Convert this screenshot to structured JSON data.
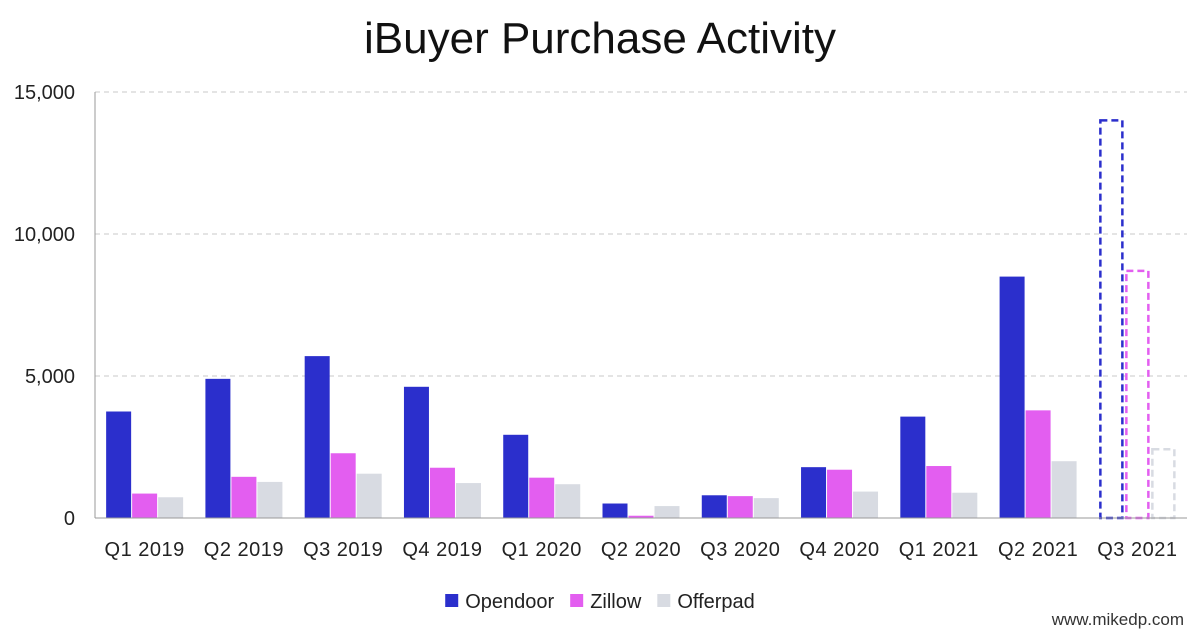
{
  "chart_data": {
    "type": "bar",
    "title": "iBuyer Purchase Activity",
    "xlabel": "",
    "ylabel": "",
    "ylim": [
      0,
      15000
    ],
    "yticks": [
      0,
      5000,
      10000,
      15000
    ],
    "ytick_labels": [
      "0",
      "5,000",
      "10,000",
      "15,000"
    ],
    "grid": true,
    "legend_position": "bottom-center",
    "categories": [
      "Q1 2019",
      "Q2 2019",
      "Q3 2019",
      "Q4 2019",
      "Q1 2020",
      "Q2 2020",
      "Q3 2020",
      "Q4 2020",
      "Q1 2021",
      "Q2 2021",
      "Q3 2021"
    ],
    "estimated_categories": [
      "Q3 2021"
    ],
    "series": [
      {
        "name": "Opendoor",
        "color": "#2b2fcc",
        "values": [
          3750,
          4900,
          5700,
          4620,
          2930,
          510,
          800,
          1790,
          3570,
          8500,
          14000
        ]
      },
      {
        "name": "Zillow",
        "color": "#e35ef0",
        "values": [
          860,
          1450,
          2280,
          1770,
          1420,
          80,
          770,
          1700,
          1830,
          3790,
          8700
        ]
      },
      {
        "name": "Offerpad",
        "color": "#d8dbe2",
        "values": [
          730,
          1270,
          1560,
          1230,
          1190,
          420,
          700,
          930,
          890,
          2000,
          2420
        ]
      }
    ]
  },
  "watermark": "www.mikedp.com"
}
